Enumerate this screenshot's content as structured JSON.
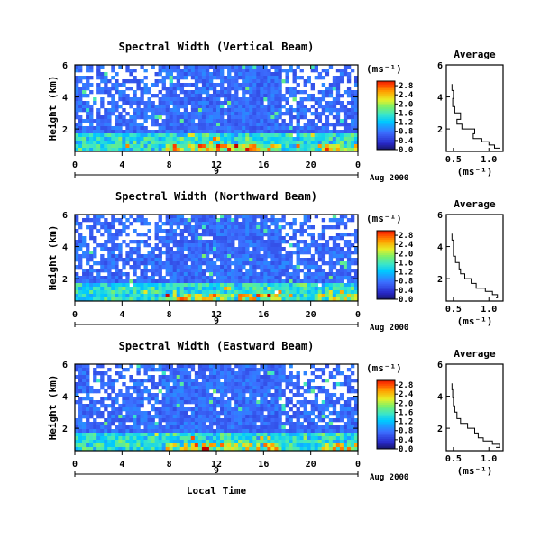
{
  "x_axis_label": "Local Time",
  "colorbar_unit_label": "(ms⁻¹)",
  "date_label": "Aug 2000",
  "day_label": "9",
  "avg_title": "Average",
  "avg_unit_label": "(ms⁻¹)",
  "y_axis_label": "Height (km)",
  "chart_data": [
    {
      "type": "heatmap",
      "title": "Spectral Width (Vertical Beam)",
      "x_ticks": [
        "0",
        "4",
        "8",
        "12",
        "16",
        "20",
        "0"
      ],
      "xlim": [
        0,
        24
      ],
      "y_ticks": [
        "2",
        "4",
        "6"
      ],
      "ylim": [
        0.6,
        6
      ],
      "colorbar_ticks": [
        "0.0",
        "0.4",
        "0.8",
        "1.2",
        "1.6",
        "2.0",
        "2.4",
        "2.8"
      ],
      "colorbar_range": [
        0,
        3.0
      ],
      "average_profile": {
        "x_ticks": [
          "0.5",
          "1.0"
        ],
        "y_ticks": [
          "2",
          "4",
          "6"
        ],
        "xlim": [
          0.4,
          1.2
        ],
        "ylim": [
          0.6,
          6
        ],
        "width": [
          0.48,
          0.5,
          0.49,
          0.52,
          0.6,
          0.55,
          0.62,
          0.8,
          0.78,
          0.9,
          1.0,
          1.08,
          1.15
        ],
        "height": [
          4.8,
          4.4,
          3.9,
          3.4,
          3.0,
          2.6,
          2.3,
          2.0,
          1.7,
          1.4,
          1.2,
          1.0,
          0.8
        ]
      }
    },
    {
      "type": "heatmap",
      "title": "Spectral Width (Northward Beam)",
      "x_ticks": [
        "0",
        "4",
        "8",
        "12",
        "16",
        "20",
        "0"
      ],
      "xlim": [
        0,
        24
      ],
      "y_ticks": [
        "2",
        "4",
        "6"
      ],
      "ylim": [
        0.6,
        6
      ],
      "colorbar_ticks": [
        "0.0",
        "0.4",
        "0.8",
        "1.2",
        "1.6",
        "2.0",
        "2.4",
        "2.8"
      ],
      "colorbar_range": [
        0,
        3.0
      ],
      "average_profile": {
        "x_ticks": [
          "0.5",
          "1.0"
        ],
        "y_ticks": [
          "2",
          "4",
          "6"
        ],
        "xlim": [
          0.4,
          1.2
        ],
        "ylim": [
          0.6,
          6
        ],
        "width": [
          0.48,
          0.5,
          0.5,
          0.53,
          0.58,
          0.6,
          0.66,
          0.75,
          0.82,
          0.95,
          1.05,
          1.12,
          1.1
        ],
        "height": [
          4.8,
          4.4,
          3.9,
          3.4,
          3.0,
          2.6,
          2.3,
          2.0,
          1.7,
          1.4,
          1.2,
          1.0,
          0.8
        ]
      }
    },
    {
      "type": "heatmap",
      "title": "Spectral Width (Eastward Beam)",
      "x_ticks": [
        "0",
        "4",
        "8",
        "12",
        "16",
        "20",
        "0"
      ],
      "xlim": [
        0,
        24
      ],
      "y_ticks": [
        "2",
        "4",
        "6"
      ],
      "ylim": [
        0.6,
        6
      ],
      "colorbar_ticks": [
        "0.0",
        "0.4",
        "0.8",
        "1.2",
        "1.6",
        "2.0",
        "2.4",
        "2.8"
      ],
      "colorbar_range": [
        0,
        3.0
      ],
      "average_profile": {
        "x_ticks": [
          "0.5",
          "1.0"
        ],
        "y_ticks": [
          "2",
          "4",
          "6"
        ],
        "xlim": [
          0.4,
          1.2
        ],
        "ylim": [
          0.6,
          6
        ],
        "width": [
          0.48,
          0.49,
          0.5,
          0.52,
          0.55,
          0.6,
          0.7,
          0.8,
          0.85,
          0.92,
          1.05,
          1.15,
          1.1
        ],
        "height": [
          4.8,
          4.4,
          3.9,
          3.4,
          3.0,
          2.6,
          2.3,
          2.0,
          1.7,
          1.4,
          1.2,
          1.0,
          0.8
        ]
      }
    }
  ]
}
